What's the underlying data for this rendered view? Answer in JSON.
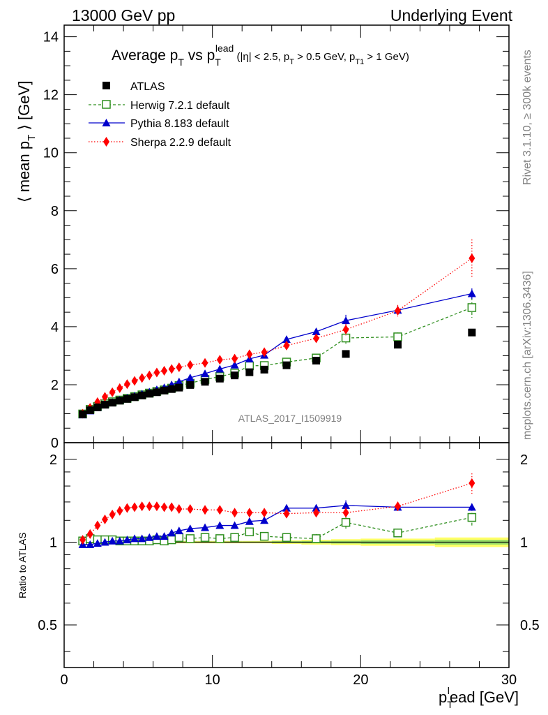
{
  "header": {
    "left": "13000 GeV pp",
    "right": "Underlying Event"
  },
  "side_text": {
    "top": "Rivet 3.1.10, ≥ 300k events",
    "bottom": "mcplots.cern.ch [arXiv:1306.3436]"
  },
  "colors": {
    "atlas": "#000000",
    "herwig": "#2f8f1f",
    "pythia": "#0000cc",
    "sherpa": "#ff0000",
    "band_yellow": "#ffff66",
    "band_green": "#99dd66"
  },
  "chart_data": [
    {
      "type": "scatter",
      "title": "Average pT vs pTlead (|η| < 2.5, pT > 0.5 GeV, pT1 > 1 GeV)",
      "title_parts": {
        "main": "Average p",
        "main_sub": "T",
        "vs": " vs p",
        "vs_sub": "T",
        "vs_sup": "lead",
        "cond": " (|η| < 2.5, p",
        "cond_sub1": "T",
        "cond2": " > 0.5 GeV, p",
        "cond_sub2": "T1",
        "cond3": " > 1 GeV)"
      },
      "ylabel": "⟨ mean pT ⟩ [GeV]",
      "ylabel_parts": {
        "a": "⟨ mean p",
        "sub": "T",
        "b": " ⟩ [GeV]"
      },
      "xlim": [
        0,
        30
      ],
      "ylim": [
        0,
        14.4
      ],
      "yticks": [
        0,
        2,
        4,
        6,
        8,
        10,
        12,
        14
      ],
      "watermark": "ATLAS_2017_I1509919",
      "legend_position": "top-left",
      "series": [
        {
          "name": "ATLAS",
          "key": "atlas",
          "marker": "square-filled",
          "line": "none",
          "x": [
            1.25,
            1.75,
            2.25,
            2.75,
            3.25,
            3.75,
            4.25,
            4.75,
            5.25,
            5.75,
            6.25,
            6.75,
            7.25,
            7.75,
            8.5,
            9.5,
            10.5,
            11.5,
            12.5,
            13.5,
            15,
            17,
            19,
            22.5,
            27.5
          ],
          "y": [
            0.98,
            1.12,
            1.22,
            1.31,
            1.38,
            1.45,
            1.51,
            1.57,
            1.63,
            1.69,
            1.74,
            1.8,
            1.85,
            1.9,
            1.99,
            2.1,
            2.21,
            2.32,
            2.43,
            2.52,
            2.67,
            2.83,
            3.06,
            3.38,
            3.8
          ],
          "err": [
            0,
            0,
            0,
            0,
            0,
            0,
            0,
            0,
            0,
            0,
            0,
            0,
            0,
            0,
            0,
            0,
            0,
            0,
            0,
            0,
            0,
            0,
            0,
            0,
            0
          ]
        },
        {
          "name": "Herwig 7.2.1 default",
          "key": "herwig",
          "marker": "square-open",
          "line": "dashed",
          "x": [
            1.25,
            1.75,
            2.25,
            2.75,
            3.25,
            3.75,
            4.25,
            4.75,
            5.25,
            5.75,
            6.25,
            6.75,
            7.25,
            7.75,
            8.5,
            9.5,
            10.5,
            11.5,
            12.5,
            13.5,
            15,
            17,
            19,
            22.5,
            27.5
          ],
          "y": [
            0.99,
            1.15,
            1.25,
            1.34,
            1.41,
            1.47,
            1.53,
            1.59,
            1.65,
            1.71,
            1.77,
            1.82,
            1.88,
            1.97,
            2.05,
            2.18,
            2.28,
            2.4,
            2.65,
            2.66,
            2.78,
            2.92,
            3.61,
            3.65,
            4.66
          ],
          "err": [
            0.02,
            0.02,
            0.02,
            0.02,
            0.02,
            0.02,
            0.02,
            0.02,
            0.02,
            0.03,
            0.03,
            0.03,
            0.03,
            0.03,
            0.04,
            0.04,
            0.05,
            0.05,
            0.06,
            0.07,
            0.08,
            0.12,
            0.2,
            0.15,
            0.35
          ]
        },
        {
          "name": "Pythia 8.183 default",
          "key": "pythia",
          "marker": "triangle-filled",
          "line": "solid",
          "x": [
            1.25,
            1.75,
            2.25,
            2.75,
            3.25,
            3.75,
            4.25,
            4.75,
            5.25,
            5.75,
            6.25,
            6.75,
            7.25,
            7.75,
            8.5,
            9.5,
            10.5,
            11.5,
            12.5,
            13.5,
            15,
            17,
            19,
            22.5,
            27.5
          ],
          "y": [
            0.96,
            1.1,
            1.21,
            1.31,
            1.39,
            1.47,
            1.54,
            1.61,
            1.68,
            1.75,
            1.83,
            1.9,
            2.0,
            2.1,
            2.24,
            2.38,
            2.54,
            2.68,
            2.89,
            3.02,
            3.56,
            3.83,
            4.21,
            4.57,
            5.14
          ],
          "err": [
            0.02,
            0.02,
            0.02,
            0.02,
            0.02,
            0.02,
            0.02,
            0.02,
            0.02,
            0.03,
            0.03,
            0.03,
            0.03,
            0.03,
            0.04,
            0.05,
            0.05,
            0.06,
            0.06,
            0.08,
            0.1,
            0.12,
            0.2,
            0.15,
            0.18
          ]
        },
        {
          "name": "Sherpa 2.2.9 default",
          "key": "sherpa",
          "marker": "diamond-filled",
          "line": "dotted",
          "x": [
            1.25,
            1.75,
            2.25,
            2.75,
            3.25,
            3.75,
            4.25,
            4.75,
            5.25,
            5.75,
            6.25,
            6.75,
            7.25,
            7.75,
            8.5,
            9.5,
            10.5,
            11.5,
            12.5,
            13.5,
            15,
            17,
            19,
            22.5,
            27.5
          ],
          "y": [
            1.0,
            1.2,
            1.4,
            1.58,
            1.74,
            1.88,
            2.02,
            2.13,
            2.23,
            2.32,
            2.42,
            2.48,
            2.54,
            2.6,
            2.68,
            2.75,
            2.86,
            2.9,
            3.05,
            3.12,
            3.35,
            3.6,
            3.9,
            4.55,
            6.36
          ],
          "err": [
            0.02,
            0.02,
            0.02,
            0.02,
            0.02,
            0.02,
            0.02,
            0.02,
            0.03,
            0.03,
            0.03,
            0.03,
            0.03,
            0.04,
            0.04,
            0.05,
            0.05,
            0.06,
            0.07,
            0.08,
            0.1,
            0.12,
            0.2,
            0.2,
            0.65
          ]
        }
      ]
    },
    {
      "type": "scatter",
      "title": "",
      "ylabel": "Ratio to ATLAS",
      "xlabel": "pTlead [GeV]",
      "xlabel_parts": {
        "a": "p",
        "sub": "T",
        "sup": "l",
        "b": "ead [GeV]"
      },
      "xlim": [
        0,
        30
      ],
      "ylim": [
        0.35,
        2.3
      ],
      "ylog": true,
      "xticks": [
        0,
        10,
        20,
        30
      ],
      "yticks": [
        0.5,
        1,
        2
      ],
      "series": [
        {
          "name": "Herwig 7.2.1 default",
          "key": "herwig",
          "x": [
            1.25,
            1.75,
            2.25,
            2.75,
            3.25,
            3.75,
            4.25,
            4.75,
            5.25,
            5.75,
            6.25,
            6.75,
            7.25,
            7.75,
            8.5,
            9.5,
            10.5,
            11.5,
            12.5,
            13.5,
            15,
            17,
            19,
            22.5,
            27.5
          ],
          "y": [
            1.01,
            1.03,
            1.02,
            1.02,
            1.02,
            1.01,
            1.01,
            1.01,
            1.01,
            1.01,
            1.02,
            1.01,
            1.02,
            1.04,
            1.03,
            1.04,
            1.03,
            1.04,
            1.09,
            1.05,
            1.04,
            1.03,
            1.18,
            1.08,
            1.23
          ],
          "err": [
            0.02,
            0.02,
            0.02,
            0.02,
            0.02,
            0.02,
            0.02,
            0.02,
            0.02,
            0.02,
            0.02,
            0.02,
            0.02,
            0.02,
            0.02,
            0.02,
            0.02,
            0.02,
            0.03,
            0.03,
            0.03,
            0.04,
            0.06,
            0.04,
            0.1
          ]
        },
        {
          "name": "Pythia 8.183 default",
          "key": "pythia",
          "x": [
            1.25,
            1.75,
            2.25,
            2.75,
            3.25,
            3.75,
            4.25,
            4.75,
            5.25,
            5.75,
            6.25,
            6.75,
            7.25,
            7.75,
            8.5,
            9.5,
            10.5,
            11.5,
            12.5,
            13.5,
            15,
            17,
            19,
            22.5,
            27.5
          ],
          "y": [
            0.98,
            0.98,
            0.99,
            1.0,
            1.01,
            1.01,
            1.02,
            1.03,
            1.03,
            1.04,
            1.05,
            1.05,
            1.08,
            1.1,
            1.12,
            1.13,
            1.15,
            1.15,
            1.19,
            1.2,
            1.33,
            1.33,
            1.36,
            1.34,
            1.34
          ],
          "err": [
            0.02,
            0.02,
            0.02,
            0.02,
            0.02,
            0.02,
            0.02,
            0.02,
            0.02,
            0.02,
            0.02,
            0.02,
            0.02,
            0.02,
            0.02,
            0.02,
            0.02,
            0.02,
            0.03,
            0.03,
            0.03,
            0.04,
            0.06,
            0.04,
            0.04
          ]
        },
        {
          "name": "Sherpa 2.2.9 default",
          "key": "sherpa",
          "x": [
            1.25,
            1.75,
            2.25,
            2.75,
            3.25,
            3.75,
            4.25,
            4.75,
            5.25,
            5.75,
            6.25,
            6.75,
            7.25,
            7.75,
            8.5,
            9.5,
            10.5,
            11.5,
            12.5,
            13.5,
            15,
            17,
            19,
            22.5,
            27.5
          ],
          "y": [
            1.02,
            1.07,
            1.15,
            1.21,
            1.26,
            1.3,
            1.33,
            1.34,
            1.35,
            1.35,
            1.35,
            1.34,
            1.34,
            1.32,
            1.32,
            1.31,
            1.31,
            1.28,
            1.28,
            1.28,
            1.27,
            1.28,
            1.28,
            1.35,
            1.64
          ],
          "err": [
            0.02,
            0.02,
            0.02,
            0.02,
            0.02,
            0.02,
            0.02,
            0.02,
            0.02,
            0.02,
            0.02,
            0.02,
            0.02,
            0.02,
            0.02,
            0.02,
            0.02,
            0.02,
            0.03,
            0.03,
            0.03,
            0.04,
            0.06,
            0.05,
            0.14
          ]
        }
      ],
      "band": {
        "x": [
          1.0,
          1.5,
          2.0,
          2.5,
          3.0,
          3.5,
          4.0,
          4.5,
          5.0,
          5.5,
          6.0,
          6.5,
          7.0,
          7.5,
          8.0,
          9.0,
          10.0,
          11.0,
          12.0,
          13.0,
          14.0,
          16.0,
          18.0,
          20.0,
          25.0,
          30.0
        ],
        "yellow": [
          0.01,
          0.01,
          0.01,
          0.01,
          0.01,
          0.01,
          0.01,
          0.01,
          0.01,
          0.01,
          0.01,
          0.01,
          0.01,
          0.01,
          0.01,
          0.01,
          0.01,
          0.01,
          0.01,
          0.01,
          0.015,
          0.02,
          0.025,
          0.03,
          0.04
        ],
        "green": [
          0.005,
          0.005,
          0.005,
          0.005,
          0.005,
          0.005,
          0.005,
          0.005,
          0.005,
          0.005,
          0.005,
          0.005,
          0.005,
          0.005,
          0.005,
          0.005,
          0.005,
          0.005,
          0.005,
          0.005,
          0.008,
          0.01,
          0.012,
          0.015,
          0.02
        ]
      }
    }
  ]
}
